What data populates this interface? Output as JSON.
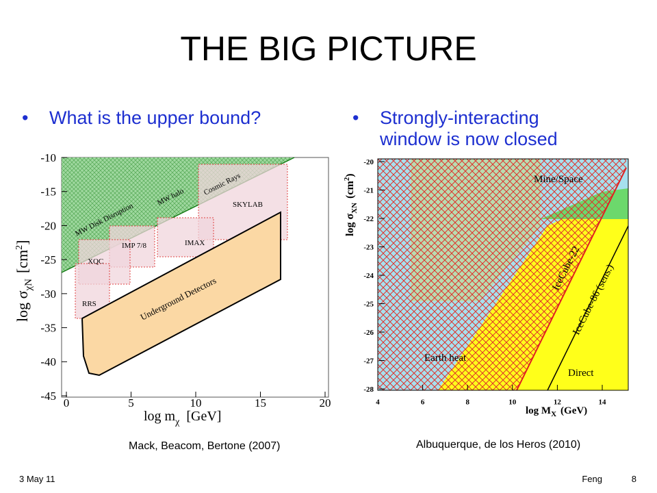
{
  "slide": {
    "title": "THE BIG PICTURE",
    "left": {
      "bullet": "What is the upper bound?",
      "plot": {
        "xticks": [
          0,
          5,
          10,
          15,
          20
        ],
        "yticks": [
          -10,
          -15,
          -20,
          -25,
          -30,
          -35,
          -40,
          -45
        ],
        "xlabel": {
          "main": "log m",
          "sub": "χ",
          "unit": "[GeV]"
        },
        "ylabel": {
          "main": "log σ",
          "sub": "χN",
          "unit": "[cm",
          "sup": "2",
          "close": "]"
        },
        "regions": [
          "MW Disk Disruption",
          "MW halo",
          "Cosmic Rays",
          "SKYLAB",
          "IMAX",
          "IMP 7/8",
          "XQC",
          "RRS",
          "Underground Detectors"
        ]
      },
      "caption": "Mack, Beacom, Bertone (2007)"
    },
    "right": {
      "bullet": "Strongly-interacting window is now closed",
      "plot": {
        "xticks": [
          4,
          6,
          8,
          10,
          12,
          14
        ],
        "yticks": [
          -20,
          -21,
          -22,
          -23,
          -24,
          -25,
          -26,
          -27,
          -28
        ],
        "xlabel": {
          "main": "log M",
          "sub": "X",
          "unit": "(GeV)"
        },
        "ylabel": {
          "main": "log σ",
          "sub": "XN",
          "unit": "(cm",
          "sup": "2",
          "close": ")"
        },
        "regions": [
          "Mine/Space",
          "IceCube-22",
          "IceCube-86 (sens.)",
          "Earth heat",
          "Direct"
        ]
      },
      "caption": "Albuquerque, de los Heros (2010)"
    },
    "footer": {
      "date": "3 May 11",
      "author": "Feng",
      "page": "8"
    }
  }
}
